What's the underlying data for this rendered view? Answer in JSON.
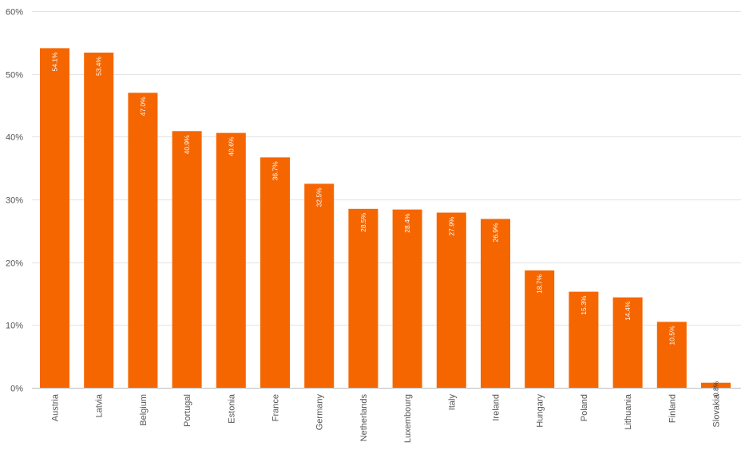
{
  "chart_data": {
    "type": "bar",
    "title": "",
    "xlabel": "",
    "ylabel": "",
    "ylim": [
      0,
      60
    ],
    "yticks": [
      0,
      10,
      20,
      30,
      40,
      50,
      60
    ],
    "ytick_labels": [
      "0%",
      "10%",
      "20%",
      "30%",
      "40%",
      "50%",
      "60%"
    ],
    "grid": true,
    "bar_color": "#f56600",
    "categories": [
      "Austria",
      "Latvia",
      "Belgium",
      "Portugal",
      "Estonia",
      "France",
      "Germany",
      "Netherlands",
      "Luxembourg",
      "Italy",
      "Ireland",
      "Hungary",
      "Poland",
      "Lithuania",
      "Finland",
      "Slovakia"
    ],
    "values": [
      54.1,
      53.4,
      47.0,
      40.9,
      40.6,
      36.7,
      32.5,
      28.5,
      28.4,
      27.9,
      26.9,
      18.7,
      15.3,
      14.4,
      10.5,
      0.8
    ],
    "value_labels": [
      "54.1%",
      "53.4%",
      "47.0%",
      "40.9%",
      "40.6%",
      "36.7%",
      "32.5%",
      "28.5%",
      "28.4%",
      "27.9%",
      "26.9%",
      "18.7%",
      "15.3%",
      "14.4%",
      "10.5%",
      "0.8%"
    ]
  }
}
